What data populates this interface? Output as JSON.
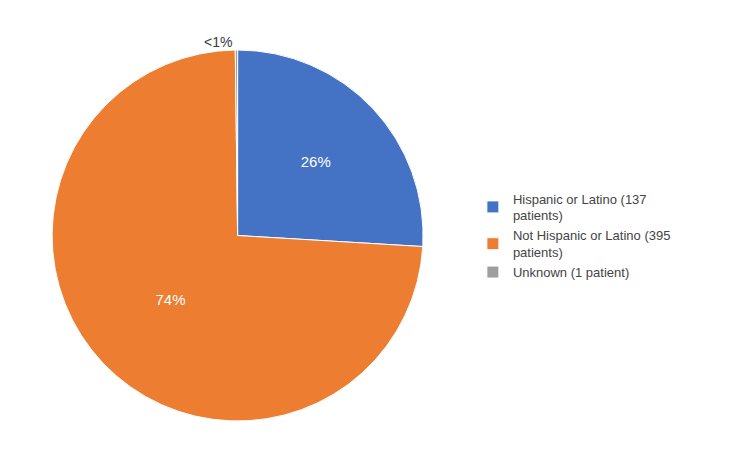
{
  "chart_data": {
    "type": "pie",
    "categories": [
      "Hispanic or Latino (137\npatients)",
      "Not Hispanic or Latino (395\npatients)",
      "Unknown (1 patient)"
    ],
    "values": [
      26,
      74,
      0.2
    ],
    "value_labels": [
      "26%",
      "74%",
      "<1%"
    ],
    "colors": [
      "#4472C4",
      "#ED7D31",
      "#9E9E9E"
    ],
    "data_labels": true,
    "legend": "right"
  }
}
